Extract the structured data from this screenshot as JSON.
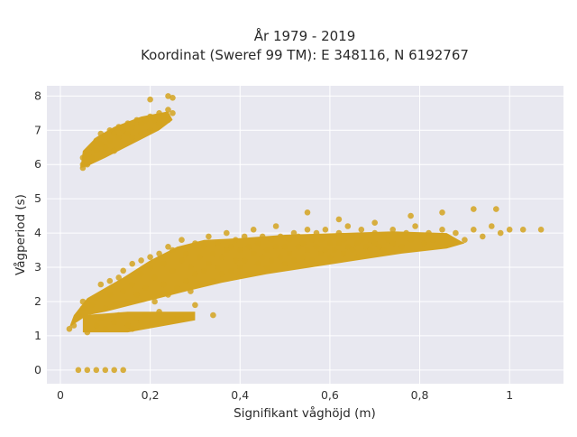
{
  "chart_data": {
    "type": "scatter",
    "title": "År 1979 - 2019",
    "subtitle": "Koordinat (Sweref 99 TM): E 348116, N 6192767",
    "xlabel": "Signifikant våghöjd (m)",
    "ylabel": "Vågperiod (s)",
    "xlim": [
      -0.03,
      1.12
    ],
    "ylim": [
      -0.4,
      8.3
    ],
    "xticks": [
      0,
      0.2,
      0.4,
      0.6,
      0.8,
      1
    ],
    "xtick_labels": [
      "0",
      "0,2",
      "0,4",
      "0,6",
      "0,8",
      "1"
    ],
    "yticks": [
      0,
      1,
      2,
      3,
      4,
      5,
      6,
      7,
      8
    ],
    "ytick_labels": [
      "0",
      "1",
      "2",
      "3",
      "4",
      "5",
      "6",
      "7",
      "8"
    ],
    "grid": true,
    "legend": "none",
    "marker_color": "#d4a320",
    "plot_background": "#e8e8f0",
    "series": [
      {
        "points": [
          [
            0.04,
            0
          ],
          [
            0.06,
            0
          ],
          [
            0.08,
            0
          ],
          [
            0.1,
            0
          ],
          [
            0.12,
            0
          ],
          [
            0.14,
            0
          ],
          [
            0.02,
            1.2
          ],
          [
            0.03,
            1.3
          ],
          [
            0.04,
            1.6
          ],
          [
            0.05,
            1.8
          ],
          [
            0.05,
            2.0
          ],
          [
            0.06,
            1.1
          ],
          [
            0.07,
            1.9
          ],
          [
            0.08,
            1.3
          ],
          [
            0.08,
            2.1
          ],
          [
            0.09,
            1.5
          ],
          [
            0.09,
            2.5
          ],
          [
            0.1,
            1.2
          ],
          [
            0.1,
            1.8
          ],
          [
            0.11,
            2.2
          ],
          [
            0.11,
            2.6
          ],
          [
            0.12,
            1.4
          ],
          [
            0.12,
            1.9
          ],
          [
            0.13,
            2.7
          ],
          [
            0.13,
            1.6
          ],
          [
            0.14,
            2.3
          ],
          [
            0.14,
            2.9
          ],
          [
            0.15,
            1.3
          ],
          [
            0.15,
            2.0
          ],
          [
            0.16,
            2.5
          ],
          [
            0.16,
            3.1
          ],
          [
            0.17,
            1.5
          ],
          [
            0.17,
            2.2
          ],
          [
            0.18,
            2.8
          ],
          [
            0.18,
            3.2
          ],
          [
            0.19,
            1.6
          ],
          [
            0.19,
            2.4
          ],
          [
            0.2,
            3.0
          ],
          [
            0.2,
            3.3
          ],
          [
            0.21,
            2.0
          ],
          [
            0.21,
            2.7
          ],
          [
            0.22,
            3.4
          ],
          [
            0.22,
            1.7
          ],
          [
            0.23,
            2.5
          ],
          [
            0.23,
            3.1
          ],
          [
            0.24,
            3.6
          ],
          [
            0.24,
            2.2
          ],
          [
            0.25,
            2.9
          ],
          [
            0.25,
            3.5
          ],
          [
            0.26,
            1.5
          ],
          [
            0.26,
            2.4
          ],
          [
            0.27,
            3.2
          ],
          [
            0.27,
            3.8
          ],
          [
            0.28,
            2.6
          ],
          [
            0.28,
            3.4
          ],
          [
            0.29,
            2.3
          ],
          [
            0.29,
            3.0
          ],
          [
            0.3,
            3.7
          ],
          [
            0.3,
            2.8
          ],
          [
            0.31,
            3.3
          ],
          [
            0.31,
            2.5
          ],
          [
            0.32,
            3.6
          ],
          [
            0.32,
            2.9
          ],
          [
            0.33,
            3.1
          ],
          [
            0.33,
            3.9
          ],
          [
            0.34,
            2.6
          ],
          [
            0.34,
            3.4
          ],
          [
            0.35,
            3.0
          ],
          [
            0.35,
            3.7
          ],
          [
            0.36,
            2.8
          ],
          [
            0.36,
            3.3
          ],
          [
            0.37,
            3.5
          ],
          [
            0.37,
            4.0
          ],
          [
            0.38,
            2.9
          ],
          [
            0.38,
            3.6
          ],
          [
            0.39,
            3.2
          ],
          [
            0.39,
            3.8
          ],
          [
            0.4,
            3.0
          ],
          [
            0.4,
            3.5
          ],
          [
            0.41,
            3.9
          ],
          [
            0.41,
            3.2
          ],
          [
            0.42,
            3.6
          ],
          [
            0.42,
            2.8
          ],
          [
            0.43,
            3.4
          ],
          [
            0.43,
            4.1
          ],
          [
            0.44,
            3.1
          ],
          [
            0.44,
            3.7
          ],
          [
            0.45,
            3.3
          ],
          [
            0.45,
            3.9
          ],
          [
            0.46,
            3.0
          ],
          [
            0.46,
            3.5
          ],
          [
            0.47,
            3.8
          ],
          [
            0.47,
            3.2
          ],
          [
            0.48,
            3.6
          ],
          [
            0.48,
            4.2
          ],
          [
            0.49,
            3.3
          ],
          [
            0.49,
            3.9
          ],
          [
            0.5,
            3.1
          ],
          [
            0.5,
            3.6
          ],
          [
            0.51,
            3.8
          ],
          [
            0.51,
            3.4
          ],
          [
            0.52,
            4.0
          ],
          [
            0.52,
            3.2
          ],
          [
            0.53,
            3.6
          ],
          [
            0.53,
            3.9
          ],
          [
            0.54,
            3.3
          ],
          [
            0.54,
            3.7
          ],
          [
            0.55,
            4.1
          ],
          [
            0.55,
            3.5
          ],
          [
            0.56,
            3.8
          ],
          [
            0.56,
            3.2
          ],
          [
            0.57,
            3.6
          ],
          [
            0.57,
            4.0
          ],
          [
            0.58,
            3.4
          ],
          [
            0.58,
            3.8
          ],
          [
            0.59,
            3.5
          ],
          [
            0.59,
            4.1
          ],
          [
            0.6,
            3.3
          ],
          [
            0.6,
            3.7
          ],
          [
            0.61,
            3.9
          ],
          [
            0.61,
            3.5
          ],
          [
            0.62,
            3.7
          ],
          [
            0.62,
            4.0
          ],
          [
            0.63,
            3.4
          ],
          [
            0.63,
            3.8
          ],
          [
            0.64,
            3.6
          ],
          [
            0.64,
            4.2
          ],
          [
            0.65,
            3.5
          ],
          [
            0.65,
            3.9
          ],
          [
            0.66,
            3.7
          ],
          [
            0.66,
            3.3
          ],
          [
            0.67,
            3.8
          ],
          [
            0.67,
            4.1
          ],
          [
            0.68,
            3.6
          ],
          [
            0.68,
            3.9
          ],
          [
            0.69,
            3.5
          ],
          [
            0.69,
            3.8
          ],
          [
            0.7,
            3.7
          ],
          [
            0.7,
            4.0
          ],
          [
            0.71,
            3.6
          ],
          [
            0.72,
            3.9
          ],
          [
            0.72,
            3.5
          ],
          [
            0.73,
            3.8
          ],
          [
            0.74,
            4.1
          ],
          [
            0.74,
            3.7
          ],
          [
            0.75,
            3.9
          ],
          [
            0.76,
            3.6
          ],
          [
            0.77,
            4.0
          ],
          [
            0.78,
            3.8
          ],
          [
            0.79,
            4.2
          ],
          [
            0.8,
            3.9
          ],
          [
            0.81,
            3.7
          ],
          [
            0.82,
            4.0
          ],
          [
            0.83,
            3.8
          ],
          [
            0.85,
            4.1
          ],
          [
            0.86,
            3.9
          ],
          [
            0.88,
            4.0
          ],
          [
            0.9,
            3.8
          ],
          [
            0.92,
            4.1
          ],
          [
            0.94,
            3.9
          ],
          [
            0.96,
            4.2
          ],
          [
            0.98,
            4.0
          ],
          [
            1.0,
            4.1
          ],
          [
            1.03,
            4.1
          ],
          [
            1.07,
            4.1
          ],
          [
            0.55,
            4.6
          ],
          [
            0.62,
            4.4
          ],
          [
            0.7,
            4.3
          ],
          [
            0.78,
            4.5
          ],
          [
            0.85,
            4.6
          ],
          [
            0.92,
            4.7
          ],
          [
            0.97,
            4.7
          ],
          [
            0.16,
            1.2
          ],
          [
            0.18,
            1.4
          ],
          [
            0.22,
            1.5
          ],
          [
            0.25,
            1.5
          ],
          [
            0.27,
            1.5
          ],
          [
            0.3,
            1.9
          ],
          [
            0.34,
            1.6
          ],
          [
            0.05,
            6.0
          ],
          [
            0.05,
            5.9
          ],
          [
            0.05,
            6.2
          ],
          [
            0.06,
            6.3
          ],
          [
            0.06,
            6.0
          ],
          [
            0.07,
            6.5
          ],
          [
            0.07,
            6.2
          ],
          [
            0.08,
            6.4
          ],
          [
            0.08,
            6.7
          ],
          [
            0.09,
            6.6
          ],
          [
            0.09,
            6.9
          ],
          [
            0.1,
            6.5
          ],
          [
            0.1,
            6.8
          ],
          [
            0.11,
            6.7
          ],
          [
            0.11,
            7.0
          ],
          [
            0.12,
            6.9
          ],
          [
            0.12,
            6.4
          ],
          [
            0.13,
            6.8
          ],
          [
            0.13,
            7.1
          ],
          [
            0.14,
            7.0
          ],
          [
            0.15,
            6.9
          ],
          [
            0.15,
            7.2
          ],
          [
            0.16,
            7.1
          ],
          [
            0.16,
            6.8
          ],
          [
            0.17,
            7.3
          ],
          [
            0.18,
            7.2
          ],
          [
            0.18,
            6.9
          ],
          [
            0.19,
            7.3
          ],
          [
            0.2,
            7.4
          ],
          [
            0.2,
            7.0
          ],
          [
            0.21,
            7.3
          ],
          [
            0.22,
            7.5
          ],
          [
            0.22,
            7.2
          ],
          [
            0.23,
            7.4
          ],
          [
            0.24,
            7.6
          ],
          [
            0.24,
            7.3
          ],
          [
            0.25,
            7.5
          ],
          [
            0.2,
            7.9
          ],
          [
            0.24,
            8.0
          ],
          [
            0.25,
            7.95
          ]
        ]
      }
    ]
  }
}
